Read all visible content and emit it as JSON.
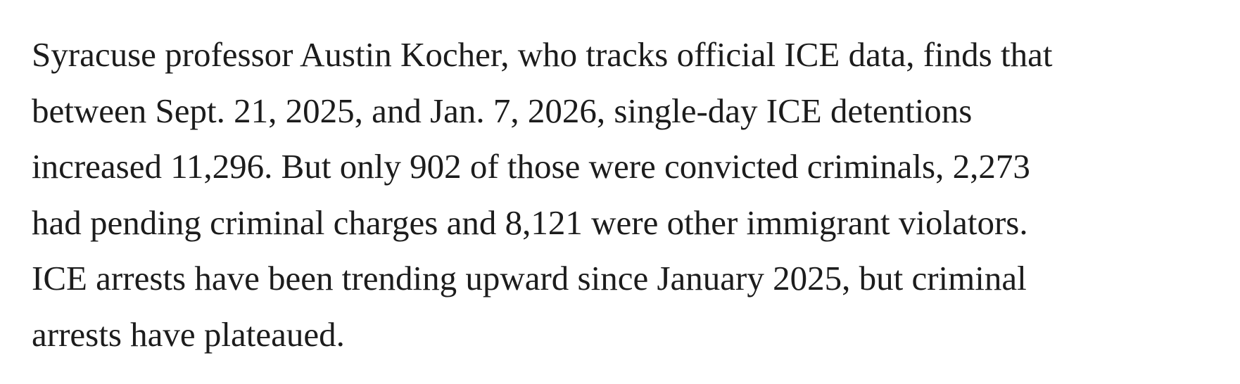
{
  "paragraph": {
    "lines": [
      "Syracuse professor Austin Kocher, who tracks official ICE data, finds that",
      "between Sept. 21, 2025, and Jan. 7, 2026, single-day ICE detentions",
      "increased 11,296. But only 902 of those were convicted criminals, 2,273",
      "had pending criminal charges and 8,121 were other immigrant violators.",
      "ICE arrests have been trending upward since January 2025, but criminal",
      "arrests have plateaued."
    ]
  }
}
